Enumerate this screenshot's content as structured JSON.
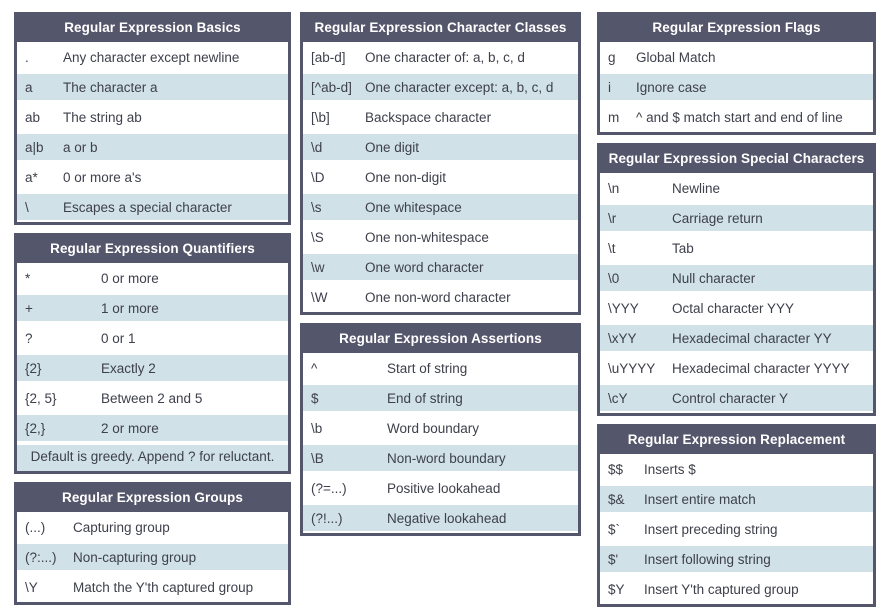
{
  "theme": {
    "header_bg": "#54566B",
    "header_text_color": "#FFFFFF",
    "row_bg": "#FFFFFF",
    "row_alt_bg": "#D0E1E8",
    "body_text_color": "#3E404B"
  },
  "tables": {
    "basics": {
      "title": "Regular Expression Basics",
      "rows": [
        [
          ".",
          "Any character except newline"
        ],
        [
          "a",
          "The character a"
        ],
        [
          "ab",
          "The string ab"
        ],
        [
          "a|b",
          "a or b"
        ],
        [
          "a*",
          "0 or more a's"
        ],
        [
          "\\",
          "Escapes a special character"
        ]
      ]
    },
    "quantifiers": {
      "title": "Regular Expression Quantifiers",
      "rows": [
        [
          "*",
          "0 or more"
        ],
        [
          "+",
          "1 or more"
        ],
        [
          "?",
          "0 or 1"
        ],
        [
          "{2}",
          "Exactly 2"
        ],
        [
          "{2, 5}",
          "Between 2 and 5"
        ],
        [
          "{2,}",
          "2 or more"
        ]
      ],
      "footer": "Default is greedy. Append ? for reluctant."
    },
    "groups": {
      "title": "Regular Expression Groups",
      "rows": [
        [
          "(...)",
          "Capturing group"
        ],
        [
          "(?:...)",
          "Non-capturing group"
        ],
        [
          "\\Y",
          "Match the Y'th captured group"
        ]
      ]
    },
    "classes": {
      "title": "Regular Expression Character Classes",
      "rows": [
        [
          "[ab-d]",
          "One character of: a, b, c, d"
        ],
        [
          "[^ab-d]",
          "One character except: a, b, c, d"
        ],
        [
          "[\\b]",
          "Backspace character"
        ],
        [
          "\\d",
          "One digit"
        ],
        [
          "\\D",
          "One non-digit"
        ],
        [
          "\\s",
          "One whitespace"
        ],
        [
          "\\S",
          "One non-whitespace"
        ],
        [
          "\\w",
          "One word character"
        ],
        [
          "\\W",
          "One non-word character"
        ]
      ]
    },
    "assertions": {
      "title": "Regular Expression Assertions",
      "rows": [
        [
          "^",
          "Start of string"
        ],
        [
          "$",
          "End of string"
        ],
        [
          "\\b",
          "Word boundary"
        ],
        [
          "\\B",
          "Non-word boundary"
        ],
        [
          "(?=...)",
          "Positive lookahead"
        ],
        [
          "(?!...)",
          "Negative lookahead"
        ]
      ]
    },
    "flags": {
      "title": "Regular Expression Flags",
      "rows": [
        [
          "g",
          "Global Match"
        ],
        [
          "i",
          "Ignore case"
        ],
        [
          "m",
          "^ and $ match start and end of line"
        ]
      ]
    },
    "special": {
      "title": "Regular Expression Special Characters",
      "rows": [
        [
          "\\n",
          "Newline"
        ],
        [
          "\\r",
          "Carriage return"
        ],
        [
          "\\t",
          "Tab"
        ],
        [
          "\\0",
          "Null character"
        ],
        [
          "\\YYY",
          "Octal character YYY"
        ],
        [
          "\\xYY",
          "Hexadecimal character YY"
        ],
        [
          "\\uYYYY",
          "Hexadecimal character YYYY"
        ],
        [
          "\\cY",
          "Control character Y"
        ]
      ]
    },
    "replacement": {
      "title": "Regular Expression Replacement",
      "rows": [
        [
          "$$",
          "Inserts $"
        ],
        [
          "$&",
          "Insert entire match"
        ],
        [
          "$`",
          "Insert preceding string"
        ],
        [
          "$'",
          "Insert following string"
        ],
        [
          "$Y",
          "Insert Y'th captured group"
        ]
      ]
    }
  }
}
